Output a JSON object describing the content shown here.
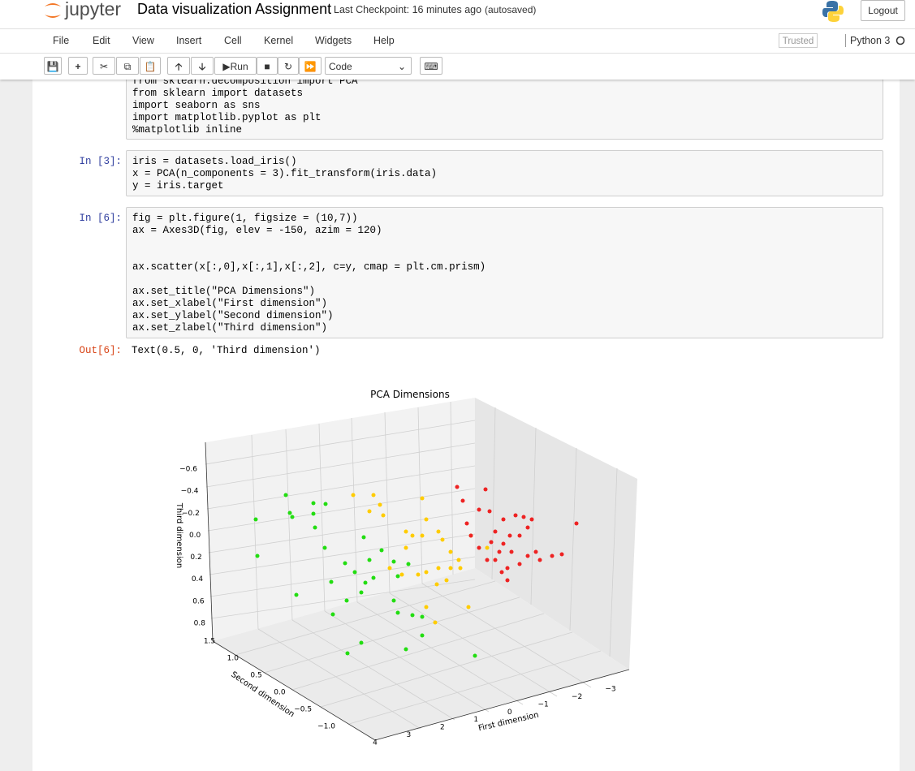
{
  "header": {
    "logo": "jupyter",
    "title": "Data visualization Assignment",
    "checkpoint": "Last Checkpoint: 16 minutes ago",
    "autosaved": "(autosaved)",
    "logout": "Logout"
  },
  "menu": {
    "items": [
      "File",
      "Edit",
      "View",
      "Insert",
      "Cell",
      "Kernel",
      "Widgets",
      "Help"
    ],
    "trusted": "Trusted",
    "kernel": "Python 3"
  },
  "toolbar": {
    "run": "Run",
    "cell_type": "Code"
  },
  "cells": [
    {
      "blocks": [
        [
          "from sklearn.decomposition import PCA",
          "from sklearn import datasets",
          "import seaborn as sns",
          "import matplotlib.pyplot as plt",
          "%matplotlib inline"
        ]
      ]
    },
    {
      "prompt": "In [3]:",
      "blocks": [
        [
          "iris = datasets.load_iris()",
          "x = PCA(n_components = 3).fit_transform(iris.data)",
          "y = iris.target"
        ]
      ]
    },
    {
      "prompt": "In [6]:",
      "blocks": [
        [
          "fig = plt.figure(1, figsize = (10,7))",
          "ax = Axes3D(fig, elev = -150, azim = 120)"
        ],
        [
          "ax.scatter(x[:,0],x[:,1],x[:,2], c=y, cmap = plt.cm.prism)"
        ],
        [
          "ax.set_title(\"PCA Dimensions\")",
          "ax.set_xlabel(\"First dimension\")",
          "ax.set_ylabel(\"Second dimension\")",
          "ax.set_zlabel(\"Third dimension\")"
        ]
      ],
      "output_prompt": "Out[6]:",
      "output": "Text(0.5, 0, 'Third dimension')"
    }
  ],
  "figure": {
    "title": "PCA Dimensions",
    "xlabel": "First dimension",
    "ylabel": "Second dimension",
    "zlabel": "Third dimension",
    "xticks": [
      "4",
      "3",
      "2",
      "1",
      "0",
      "−1",
      "−2",
      "−3"
    ],
    "yticks": [
      "1.5",
      "1.0",
      "0.5",
      "0.0",
      "−0.5",
      "−1.0"
    ],
    "zticks": [
      "−0.6",
      "−0.4",
      "−0.2",
      "0.0",
      "0.2",
      "0.4",
      "0.6",
      "0.8"
    ]
  }
}
